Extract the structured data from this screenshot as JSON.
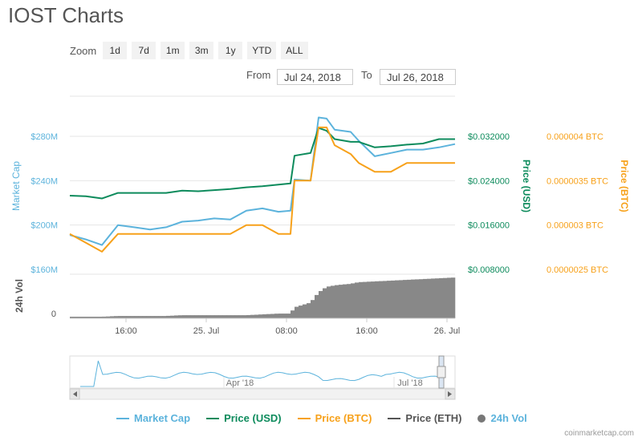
{
  "page": {
    "title": "IOST Charts",
    "credit": "coinmarketcap.com"
  },
  "zoom": {
    "label": "Zoom",
    "buttons": [
      "1d",
      "7d",
      "1m",
      "3m",
      "1y",
      "YTD",
      "ALL"
    ]
  },
  "range": {
    "from_label": "From",
    "from_value": "Jul 24, 2018",
    "to_label": "To",
    "to_value": "Jul 26, 2018"
  },
  "colors": {
    "market_cap": "#5cb3dc",
    "price_usd": "#0d8b5c",
    "price_btc": "#f7a11a",
    "price_eth": "#555555",
    "volume": "#888888"
  },
  "chart_data": {
    "type": "line",
    "xlabel": "",
    "x_ticks": [
      "16:00",
      "25. Jul",
      "08:00",
      "16:00",
      "26. Jul"
    ],
    "axes": {
      "market_cap": {
        "label": "Market Cap",
        "ticks": [
          "$280M",
          "$240M",
          "$200M",
          "$160M"
        ],
        "range": [
          160,
          280
        ]
      },
      "price_usd": {
        "label": "Price (USD)",
        "ticks": [
          "$0.032000",
          "$0.024000",
          "$0.016000",
          "$0.008000"
        ],
        "range": [
          0.008,
          0.032
        ]
      },
      "price_btc": {
        "label": "Price (BTC)",
        "ticks": [
          "0.000004 BTC",
          "0.0000035 BTC",
          "0.000003 BTC",
          "0.0000025 BTC"
        ],
        "range": [
          2.5e-06,
          4e-06
        ]
      },
      "volume": {
        "label": "24h Vol",
        "ticks": [
          "0"
        ]
      }
    },
    "x_hours": [
      0,
      2,
      4,
      6,
      8,
      10,
      12,
      14,
      16,
      18,
      20,
      22,
      24,
      26,
      27.5,
      28,
      30,
      31,
      32,
      33,
      35,
      36,
      38,
      40,
      42,
      44,
      46,
      48
    ],
    "series": [
      {
        "name": "Market Cap",
        "unit": "$M",
        "values": [
          191,
          187,
          182,
          200,
          198,
          196,
          198,
          203,
          204,
          206,
          205,
          213,
          215,
          212,
          213,
          241,
          240,
          297,
          296,
          286,
          284,
          276,
          262,
          265,
          268,
          268,
          270,
          273
        ]
      },
      {
        "name": "Price (USD)",
        "unit": "USD",
        "values": [
          0.0213,
          0.0212,
          0.0208,
          0.0218,
          0.0218,
          0.0218,
          0.0218,
          0.0222,
          0.0221,
          0.0223,
          0.0225,
          0.0228,
          0.023,
          0.0233,
          0.0235,
          0.0285,
          0.029,
          0.0335,
          0.033,
          0.0315,
          0.031,
          0.031,
          0.03,
          0.0302,
          0.0305,
          0.0307,
          0.0315,
          0.0315
        ]
      },
      {
        "name": "Price (BTC)",
        "unit": "BTC",
        "values": [
          2.9e-06,
          2.8e-06,
          2.7e-06,
          2.9e-06,
          2.9e-06,
          2.9e-06,
          2.9e-06,
          2.9e-06,
          2.9e-06,
          2.9e-06,
          2.9e-06,
          3e-06,
          3e-06,
          2.9e-06,
          2.9e-06,
          3.5e-06,
          3.5e-06,
          4.1e-06,
          4.1e-06,
          3.9e-06,
          3.8e-06,
          3.7e-06,
          3.6e-06,
          3.6e-06,
          3.7e-06,
          3.7e-06,
          3.7e-06,
          3.7e-06
        ]
      },
      {
        "name": "Price (ETH)",
        "values": []
      },
      {
        "name": "24h Vol",
        "values": [
          2,
          2,
          2,
          3,
          3,
          3,
          3,
          4,
          4,
          4,
          4,
          4,
          5,
          6,
          6,
          14,
          20,
          33,
          40,
          42,
          44,
          46,
          47,
          48,
          49,
          50,
          51,
          52
        ]
      }
    ],
    "navigator": {
      "x_ticks": [
        "Apr '18",
        "Jul '18"
      ]
    },
    "legend": {
      "position": "bottom",
      "items": [
        "Market Cap",
        "Price (USD)",
        "Price (BTC)",
        "Price (ETH)",
        "24h Vol"
      ]
    }
  }
}
